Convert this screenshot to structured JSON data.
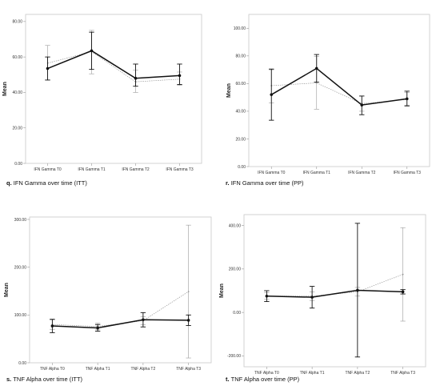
{
  "chart_data": [
    {
      "type": "line",
      "caption_letter": "q.",
      "caption_text": "IFN Gamma over time (ITT)",
      "ylabel": "Mean",
      "categories": [
        "IFN Gamma T0",
        "IFN Gamma T1",
        "IFN Gamma T2",
        "IFN Gamma T3"
      ],
      "ylim": [
        0,
        84
      ],
      "yticks": [
        0,
        20,
        40,
        60,
        80
      ],
      "ytick_labels": [
        "0.00",
        "20.00",
        "40.00",
        "60.00",
        "80.00"
      ],
      "series": [
        {
          "values": [
            53.5,
            63.5,
            48,
            49.5
          ],
          "err_low": [
            47,
            53,
            43.5,
            44.5
          ],
          "err_high": [
            60,
            74,
            56,
            56
          ],
          "color": "#111111",
          "style": "solid"
        },
        {
          "values": [
            56.5,
            63,
            46,
            47.5
          ],
          "err_low": [
            47,
            50.5,
            40,
            44
          ],
          "err_high": [
            66.5,
            75,
            52.5,
            51.5
          ],
          "color": "#999999",
          "style": "dotted"
        }
      ]
    },
    {
      "type": "line",
      "caption_letter": "r.",
      "caption_text": "IFN Gamma over time (PP)",
      "ylabel": "Mean",
      "categories": [
        "IFN Gamma T0",
        "IFN Gamma T1",
        "IFN Gamma T2",
        "IFN Gamma T3"
      ],
      "ylim": [
        0,
        110
      ],
      "yticks": [
        0,
        20,
        40,
        60,
        80,
        100
      ],
      "ytick_labels": [
        "0.00",
        "20.00",
        "40.00",
        "60.00",
        "80.00",
        "100.00"
      ],
      "series": [
        {
          "values": [
            52,
            71,
            44.5,
            49
          ],
          "err_low": [
            33.5,
            61,
            37.5,
            44
          ],
          "err_high": [
            70.5,
            81,
            51,
            54.5
          ],
          "color": "#111111",
          "style": "solid"
        },
        {
          "values": [
            58.5,
            60.5,
            45.5,
            48.5
          ],
          "err_low": [
            46,
            41.5,
            40,
            43.5
          ],
          "err_high": [
            70,
            79.5,
            51,
            53.5
          ],
          "color": "#999999",
          "style": "dotted"
        }
      ]
    },
    {
      "type": "line",
      "caption_letter": "s.",
      "caption_text": "TNF Alpha over time (ITT)",
      "ylabel": "Mean",
      "categories": [
        "TNF Alpha T0",
        "TNF Alpha T1",
        "TNF Alpha T2",
        "TNF Alpha T3"
      ],
      "ylim": [
        0,
        305
      ],
      "yticks": [
        0,
        100,
        200,
        300
      ],
      "ytick_labels": [
        "0.00",
        "100.00",
        "200.00",
        "300.00"
      ],
      "series": [
        {
          "values": [
            77,
            73,
            90,
            89
          ],
          "err_low": [
            63,
            66,
            75,
            78
          ],
          "err_high": [
            91,
            80,
            105,
            100
          ],
          "color": "#111111",
          "style": "solid"
        },
        {
          "values": [
            80,
            76,
            88,
            149
          ],
          "err_low": [
            70,
            69,
            80,
            10
          ],
          "err_high": [
            90,
            83,
            96,
            288
          ],
          "color": "#999999",
          "style": "dotted"
        }
      ]
    },
    {
      "type": "line",
      "caption_letter": "t.",
      "caption_text": "TNF Alpha over time (PP)",
      "ylabel": "Mean",
      "categories": [
        "TNF Alpha T0",
        "TNF Alpha T1",
        "TNF Alpha T2",
        "TNF Alpha T3"
      ],
      "ylim": [
        -250,
        450
      ],
      "yticks": [
        -200,
        0,
        200,
        400
      ],
      "ytick_labels": [
        "-200.00",
        "0.00",
        "200.00",
        "400.00"
      ],
      "series": [
        {
          "values": [
            75,
            70,
            102,
            95
          ],
          "err_low": [
            50,
            20,
            -205,
            85
          ],
          "err_high": [
            100,
            120,
            410,
            105
          ],
          "color": "#111111",
          "style": "solid"
        },
        {
          "values": [
            75,
            75,
            95,
            175
          ],
          "err_low": [
            60,
            55,
            75,
            -40
          ],
          "err_high": [
            90,
            95,
            115,
            390
          ],
          "color": "#999999",
          "style": "dotted"
        }
      ]
    }
  ]
}
